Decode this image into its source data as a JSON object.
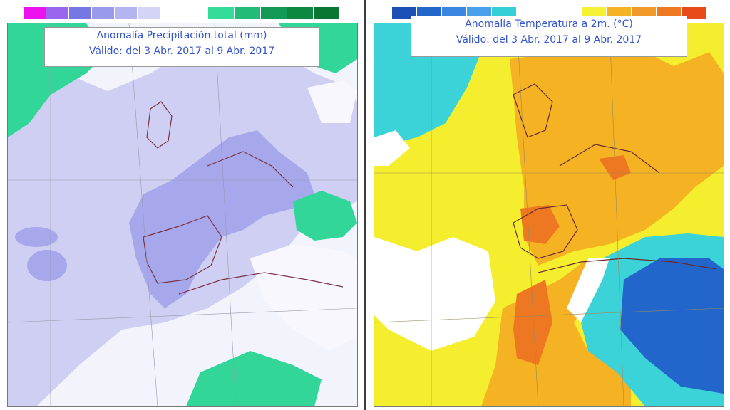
{
  "left_map": {
    "title": "Anomalía Precipitación total (mm)",
    "valid": "Válido: del 3 Abr. 2017 al 9 Abr. 2017",
    "legend_negative": [
      "#ee11ee",
      "#9a66ee",
      "#7777e4",
      "#9a9aec",
      "#b4b4f0",
      "#d4d4f6"
    ],
    "legend_positive": [
      "#33dd99",
      "#22bb77",
      "#119955",
      "#0c8840",
      "#077733"
    ],
    "legend_neg_ticks": [
      "-100",
      "-50",
      "-20",
      "-10",
      "-5",
      "-1"
    ],
    "legend_pos_ticks": [
      "1",
      "5",
      "10",
      "20",
      "50",
      "100"
    ]
  },
  "right_map": {
    "title": "Anomalía Temperatura a 2m. (°C)",
    "valid": "Válido: del 3 Abr. 2017 al 9 Abr. 2017",
    "legend_cold": [
      "#1a4fb5",
      "#2266cc",
      "#3a86e0",
      "#4aa0ea",
      "#33d0d8"
    ],
    "legend_warm": [
      "#f6f033",
      "#f5b222",
      "#f19a2a",
      "#ee7722",
      "#e84b1a"
    ]
  }
}
